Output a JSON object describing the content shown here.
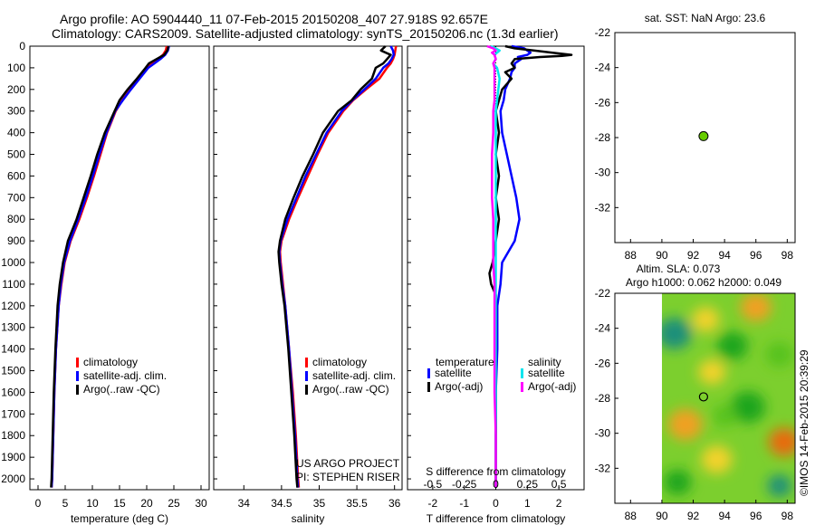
{
  "header": {
    "line1": "Argo profile: AO 5904440_11 07-Feb-2015 20150208_407 27.918S 92.657E",
    "line2": "Climatology: CARS2009. Satellite-adjusted climatology: synTS_20150206.nc (1.3d earlier)"
  },
  "colors": {
    "climatology": "#ff0000",
    "satellite": "#0000ff",
    "argo": "#000000",
    "sal_satellite": "#00e5ee",
    "sal_argo": "#ff00ff",
    "marker": "#66cc00"
  },
  "depth_axis": {
    "ylim": [
      0,
      2050
    ],
    "ticks": [
      0,
      100,
      200,
      300,
      400,
      500,
      600,
      700,
      800,
      900,
      1000,
      1100,
      1200,
      1300,
      1400,
      1500,
      1600,
      1700,
      1800,
      1900,
      2000
    ]
  },
  "chart_data": [
    {
      "type": "line",
      "id": "temperature",
      "xlabel": "temperature (deg C)",
      "xlim": [
        -1.5,
        31.5
      ],
      "xticks": [
        0,
        5,
        10,
        15,
        20,
        25,
        30
      ],
      "legend": [
        "climatology",
        "satellite-adj. clim.",
        "Argo(..raw -QC)"
      ],
      "depth": [
        0,
        20,
        40,
        60,
        80,
        100,
        150,
        200,
        250,
        300,
        400,
        500,
        600,
        700,
        800,
        900,
        1000,
        1100,
        1200,
        1400,
        1600,
        1800,
        2000,
        2040
      ],
      "series": [
        {
          "name": "climatology",
          "color_key": "climatology",
          "values": [
            23.7,
            23.5,
            23.0,
            22.0,
            21.0,
            20.0,
            18.5,
            17.0,
            15.5,
            14.3,
            12.7,
            11.5,
            10.3,
            9.0,
            7.6,
            6.0,
            4.9,
            4.3,
            3.8,
            3.3,
            3.0,
            2.8,
            2.6,
            2.5
          ]
        },
        {
          "name": "satellite-adj. clim.",
          "color_key": "satellite",
          "values": [
            24.1,
            23.9,
            23.4,
            22.5,
            21.4,
            20.3,
            18.7,
            17.1,
            15.6,
            14.2,
            12.6,
            11.3,
            10.1,
            8.8,
            7.4,
            5.9,
            4.8,
            4.2,
            3.8,
            3.3,
            3.0,
            2.8,
            2.6,
            2.5
          ]
        },
        {
          "name": "Argo(..raw -QC)",
          "color_key": "argo",
          "values": [
            24.0,
            23.8,
            23.2,
            21.8,
            20.4,
            19.8,
            18.2,
            16.5,
            15.0,
            14.1,
            12.3,
            10.9,
            9.7,
            8.4,
            7.1,
            5.5,
            4.6,
            4.0,
            3.6,
            3.2,
            2.9,
            2.7,
            2.5,
            2.4
          ]
        }
      ]
    },
    {
      "type": "line",
      "id": "salinity",
      "xlabel": "salinity",
      "xlim": [
        33.6,
        36.1
      ],
      "xticks": [
        34,
        34.5,
        35,
        35.5,
        36
      ],
      "xtick_labels": [
        "34",
        "34.5",
        "35",
        "35.5",
        "36"
      ],
      "legend": [
        "climatology",
        "satellite-adj. clim.",
        "Argo(..raw -QC)"
      ],
      "depth": [
        0,
        20,
        40,
        60,
        80,
        100,
        150,
        200,
        250,
        300,
        400,
        500,
        600,
        700,
        800,
        900,
        950,
        1000,
        1100,
        1200,
        1400,
        1600,
        1800,
        2000,
        2040
      ],
      "series": [
        {
          "name": "climatology",
          "color_key": "climatology",
          "values": [
            36.02,
            36.01,
            36.0,
            35.98,
            35.95,
            35.9,
            35.8,
            35.62,
            35.45,
            35.32,
            35.12,
            34.98,
            34.85,
            34.72,
            34.6,
            34.5,
            34.48,
            34.49,
            34.52,
            34.55,
            34.6,
            34.65,
            34.69,
            34.72,
            34.73
          ]
        },
        {
          "name": "satellite-adj. clim.",
          "color_key": "satellite",
          "values": [
            35.95,
            35.98,
            35.99,
            35.96,
            35.92,
            35.85,
            35.75,
            35.6,
            35.44,
            35.3,
            35.1,
            34.96,
            34.82,
            34.7,
            34.58,
            34.49,
            34.47,
            34.48,
            34.51,
            34.55,
            34.6,
            34.64,
            34.68,
            34.71,
            34.72
          ]
        },
        {
          "name": "Argo(..raw -QC)",
          "color_key": "argo",
          "values": [
            35.88,
            35.82,
            35.95,
            35.9,
            35.85,
            35.75,
            35.7,
            35.55,
            35.43,
            35.25,
            35.05,
            34.92,
            34.78,
            34.66,
            34.55,
            34.48,
            34.46,
            34.47,
            34.5,
            34.54,
            34.59,
            34.63,
            34.67,
            34.7,
            34.71
          ]
        }
      ],
      "annotation": [
        "US ARGO PROJECT",
        "PI: STEPHEN RISER"
      ]
    },
    {
      "type": "line",
      "id": "differences",
      "xlabel": "T difference from climatology",
      "xlabel_top": "S difference from climatology",
      "xlim": [
        -2.8,
        2.8
      ],
      "xticks": [
        -2,
        -1,
        0,
        1,
        2
      ],
      "top_ticks": [
        -0.5,
        -0.25,
        0,
        0.25,
        0.5
      ],
      "top_tick_labels": [
        "-0.5",
        "-0.25",
        "0",
        "0.25",
        "0.5"
      ],
      "top_scale": 4,
      "legend_titles": [
        "temperature",
        "salinity"
      ],
      "legend_temperature": [
        "satellite",
        "Argo(-adj)"
      ],
      "legend_salinity": [
        "satellite",
        "Argo(-adj)"
      ],
      "series": [
        {
          "name": "T satellite",
          "color_key": "satellite",
          "depth": [
            0,
            10,
            20,
            30,
            40,
            50,
            60,
            80,
            100,
            120,
            150,
            200,
            250,
            300,
            400,
            500,
            600,
            700,
            800,
            900,
            1000,
            1100,
            1200,
            1400,
            1600,
            1800,
            2000,
            2040
          ],
          "values": [
            0.5,
            0.9,
            1.0,
            1.1,
            1.0,
            0.7,
            0.8,
            0.6,
            0.6,
            0.5,
            0.45,
            0.3,
            0.25,
            0.15,
            0.2,
            0.35,
            0.5,
            0.65,
            0.75,
            0.6,
            0.2,
            0.15,
            0.05,
            0.05,
            0.0,
            0.0,
            0.0,
            0.0
          ]
        },
        {
          "name": "T Argo(-adj)",
          "color_key": "argo",
          "depth": [
            0,
            10,
            20,
            30,
            40,
            45,
            50,
            60,
            80,
            100,
            120,
            150,
            200,
            250,
            300,
            400,
            500,
            600,
            700,
            800,
            900,
            1000,
            1050,
            1100,
            1150,
            1200,
            1400,
            1600,
            1800,
            2000,
            2040
          ],
          "values": [
            0.3,
            0.6,
            1.2,
            1.8,
            2.4,
            2.1,
            1.4,
            0.6,
            0.5,
            0.6,
            0.3,
            0.5,
            0.2,
            0.1,
            0.0,
            0.1,
            0.0,
            0.1,
            0.0,
            0.1,
            0.0,
            -0.1,
            -0.2,
            -0.15,
            0.0,
            0.0,
            0.0,
            0.0,
            0.0,
            0.0,
            0.0
          ]
        },
        {
          "name": "S satellite",
          "color_key": "sal_satellite",
          "depth": [
            0,
            10,
            20,
            30,
            40,
            60,
            80,
            100,
            150,
            200,
            250,
            300,
            400,
            500,
            600,
            700,
            800,
            900,
            1000,
            1100,
            1200,
            1400,
            1600,
            1800,
            2000,
            2040
          ],
          "values": [
            -0.04,
            0.0,
            0.03,
            0.01,
            -0.01,
            0.0,
            -0.02,
            0.01,
            0.03,
            0.02,
            0.01,
            0.0,
            0.0,
            0.0,
            0.0,
            0.0,
            0.0,
            0.0,
            0.0,
            0.0,
            0.0,
            0.0,
            0.0,
            0.0,
            0.0,
            0.0
          ]
        },
        {
          "name": "S Argo(-adj)",
          "color_key": "sal_argo",
          "depth": [
            0,
            10,
            20,
            30,
            40,
            60,
            80,
            100,
            150,
            200,
            250,
            300,
            400,
            500,
            600,
            700,
            800,
            900,
            1000,
            1100,
            1200,
            1400,
            1600,
            1800,
            2000,
            2040
          ],
          "values": [
            -0.07,
            -0.02,
            0.0,
            -0.03,
            -0.01,
            0.0,
            -0.02,
            -0.01,
            -0.01,
            -0.01,
            -0.01,
            -0.02,
            -0.02,
            -0.03,
            -0.03,
            -0.03,
            -0.02,
            -0.02,
            -0.02,
            -0.01,
            -0.01,
            -0.01,
            -0.01,
            0.0,
            0.0,
            0.0
          ]
        }
      ]
    },
    {
      "type": "scatter",
      "id": "sst_map",
      "title": "sat. SST: NaN Argo: 23.6",
      "xlim": [
        87,
        98.5
      ],
      "ylim": [
        -34,
        -22
      ],
      "xticks": [
        88,
        90,
        92,
        94,
        96,
        98
      ],
      "yticks": [
        -22,
        -24,
        -26,
        -28,
        -30,
        -32
      ],
      "points": [
        {
          "x": 92.657,
          "y": -27.918
        }
      ]
    },
    {
      "type": "heatmap",
      "id": "sla_map",
      "title_lines": [
        "Altim. SLA: 0.073",
        "Argo h1000: 0.062 h2000: 0.049"
      ],
      "xlim": [
        87,
        98.5
      ],
      "ylim": [
        -34,
        -22
      ],
      "xticks": [
        88,
        90,
        92,
        94,
        96,
        98
      ],
      "yticks": [
        -22,
        -24,
        -26,
        -28,
        -30,
        -32
      ],
      "data_extent_x": [
        90,
        98.5
      ],
      "point": {
        "x": 92.657,
        "y": -27.918
      },
      "blobs": [
        {
          "x": 90.8,
          "y": -24.3,
          "s": 1.0,
          "v": -0.9
        },
        {
          "x": 92.8,
          "y": -23.5,
          "s": 0.8,
          "v": 0.5
        },
        {
          "x": 96.0,
          "y": -22.8,
          "s": 0.9,
          "v": 0.8
        },
        {
          "x": 94.5,
          "y": -25.0,
          "s": 0.9,
          "v": -0.4
        },
        {
          "x": 97.5,
          "y": -25.5,
          "s": 0.8,
          "v": -0.3
        },
        {
          "x": 93.2,
          "y": -26.5,
          "s": 0.8,
          "v": 0.7
        },
        {
          "x": 91.5,
          "y": -29.5,
          "s": 1.0,
          "v": 0.9
        },
        {
          "x": 95.5,
          "y": -28.5,
          "s": 1.0,
          "v": -0.6
        },
        {
          "x": 97.8,
          "y": -30.5,
          "s": 0.9,
          "v": 1.1
        },
        {
          "x": 93.5,
          "y": -31.5,
          "s": 0.9,
          "v": 0.6
        },
        {
          "x": 91.0,
          "y": -32.8,
          "s": 0.8,
          "v": -0.4
        },
        {
          "x": 97.5,
          "y": -33.0,
          "s": 0.7,
          "v": -1.0
        },
        {
          "x": 94.0,
          "y": -29.0,
          "s": 0.7,
          "v": -0.2
        }
      ]
    }
  ],
  "stamp": "©IMOS 14-Feb-2015 20:39:29"
}
